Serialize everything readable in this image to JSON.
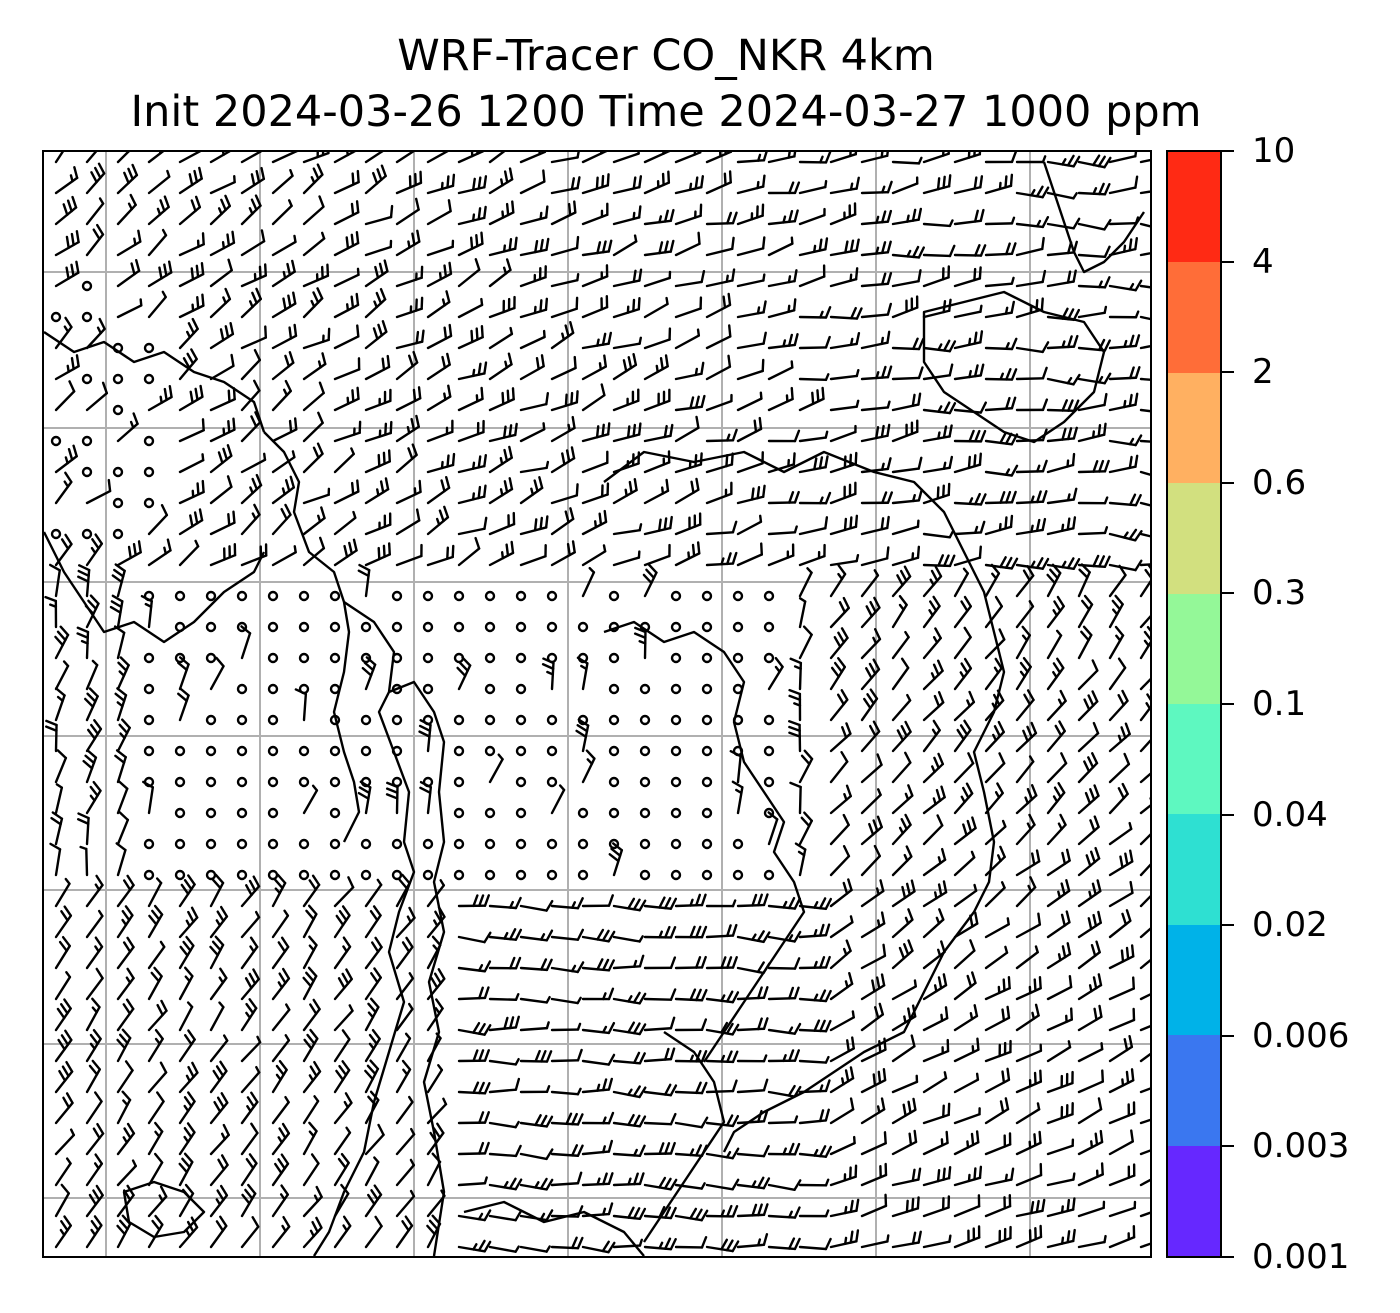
{
  "title": {
    "line1": "WRF-Tracer CO_NKR 4km",
    "line2": "Init 2024-03-26 1200 Time 2024-03-27 1000 ppm"
  },
  "colorbar": {
    "labels": [
      "10",
      "4",
      "2",
      "0.6",
      "0.3",
      "0.1",
      "0.04",
      "0.02",
      "0.006",
      "0.003",
      "0.001"
    ],
    "colors": [
      "#ff2a14",
      "#ff6d38",
      "#ffb061",
      "#d2e07f",
      "#94f898",
      "#5ef8c0",
      "#2ee0d2",
      "#00b2e8",
      "#3a77f0",
      "#6628ff"
    ]
  },
  "map": {
    "gridline_color": "#b0b0b0",
    "coastline_color": "#000000",
    "barb_color": "#000000"
  }
}
